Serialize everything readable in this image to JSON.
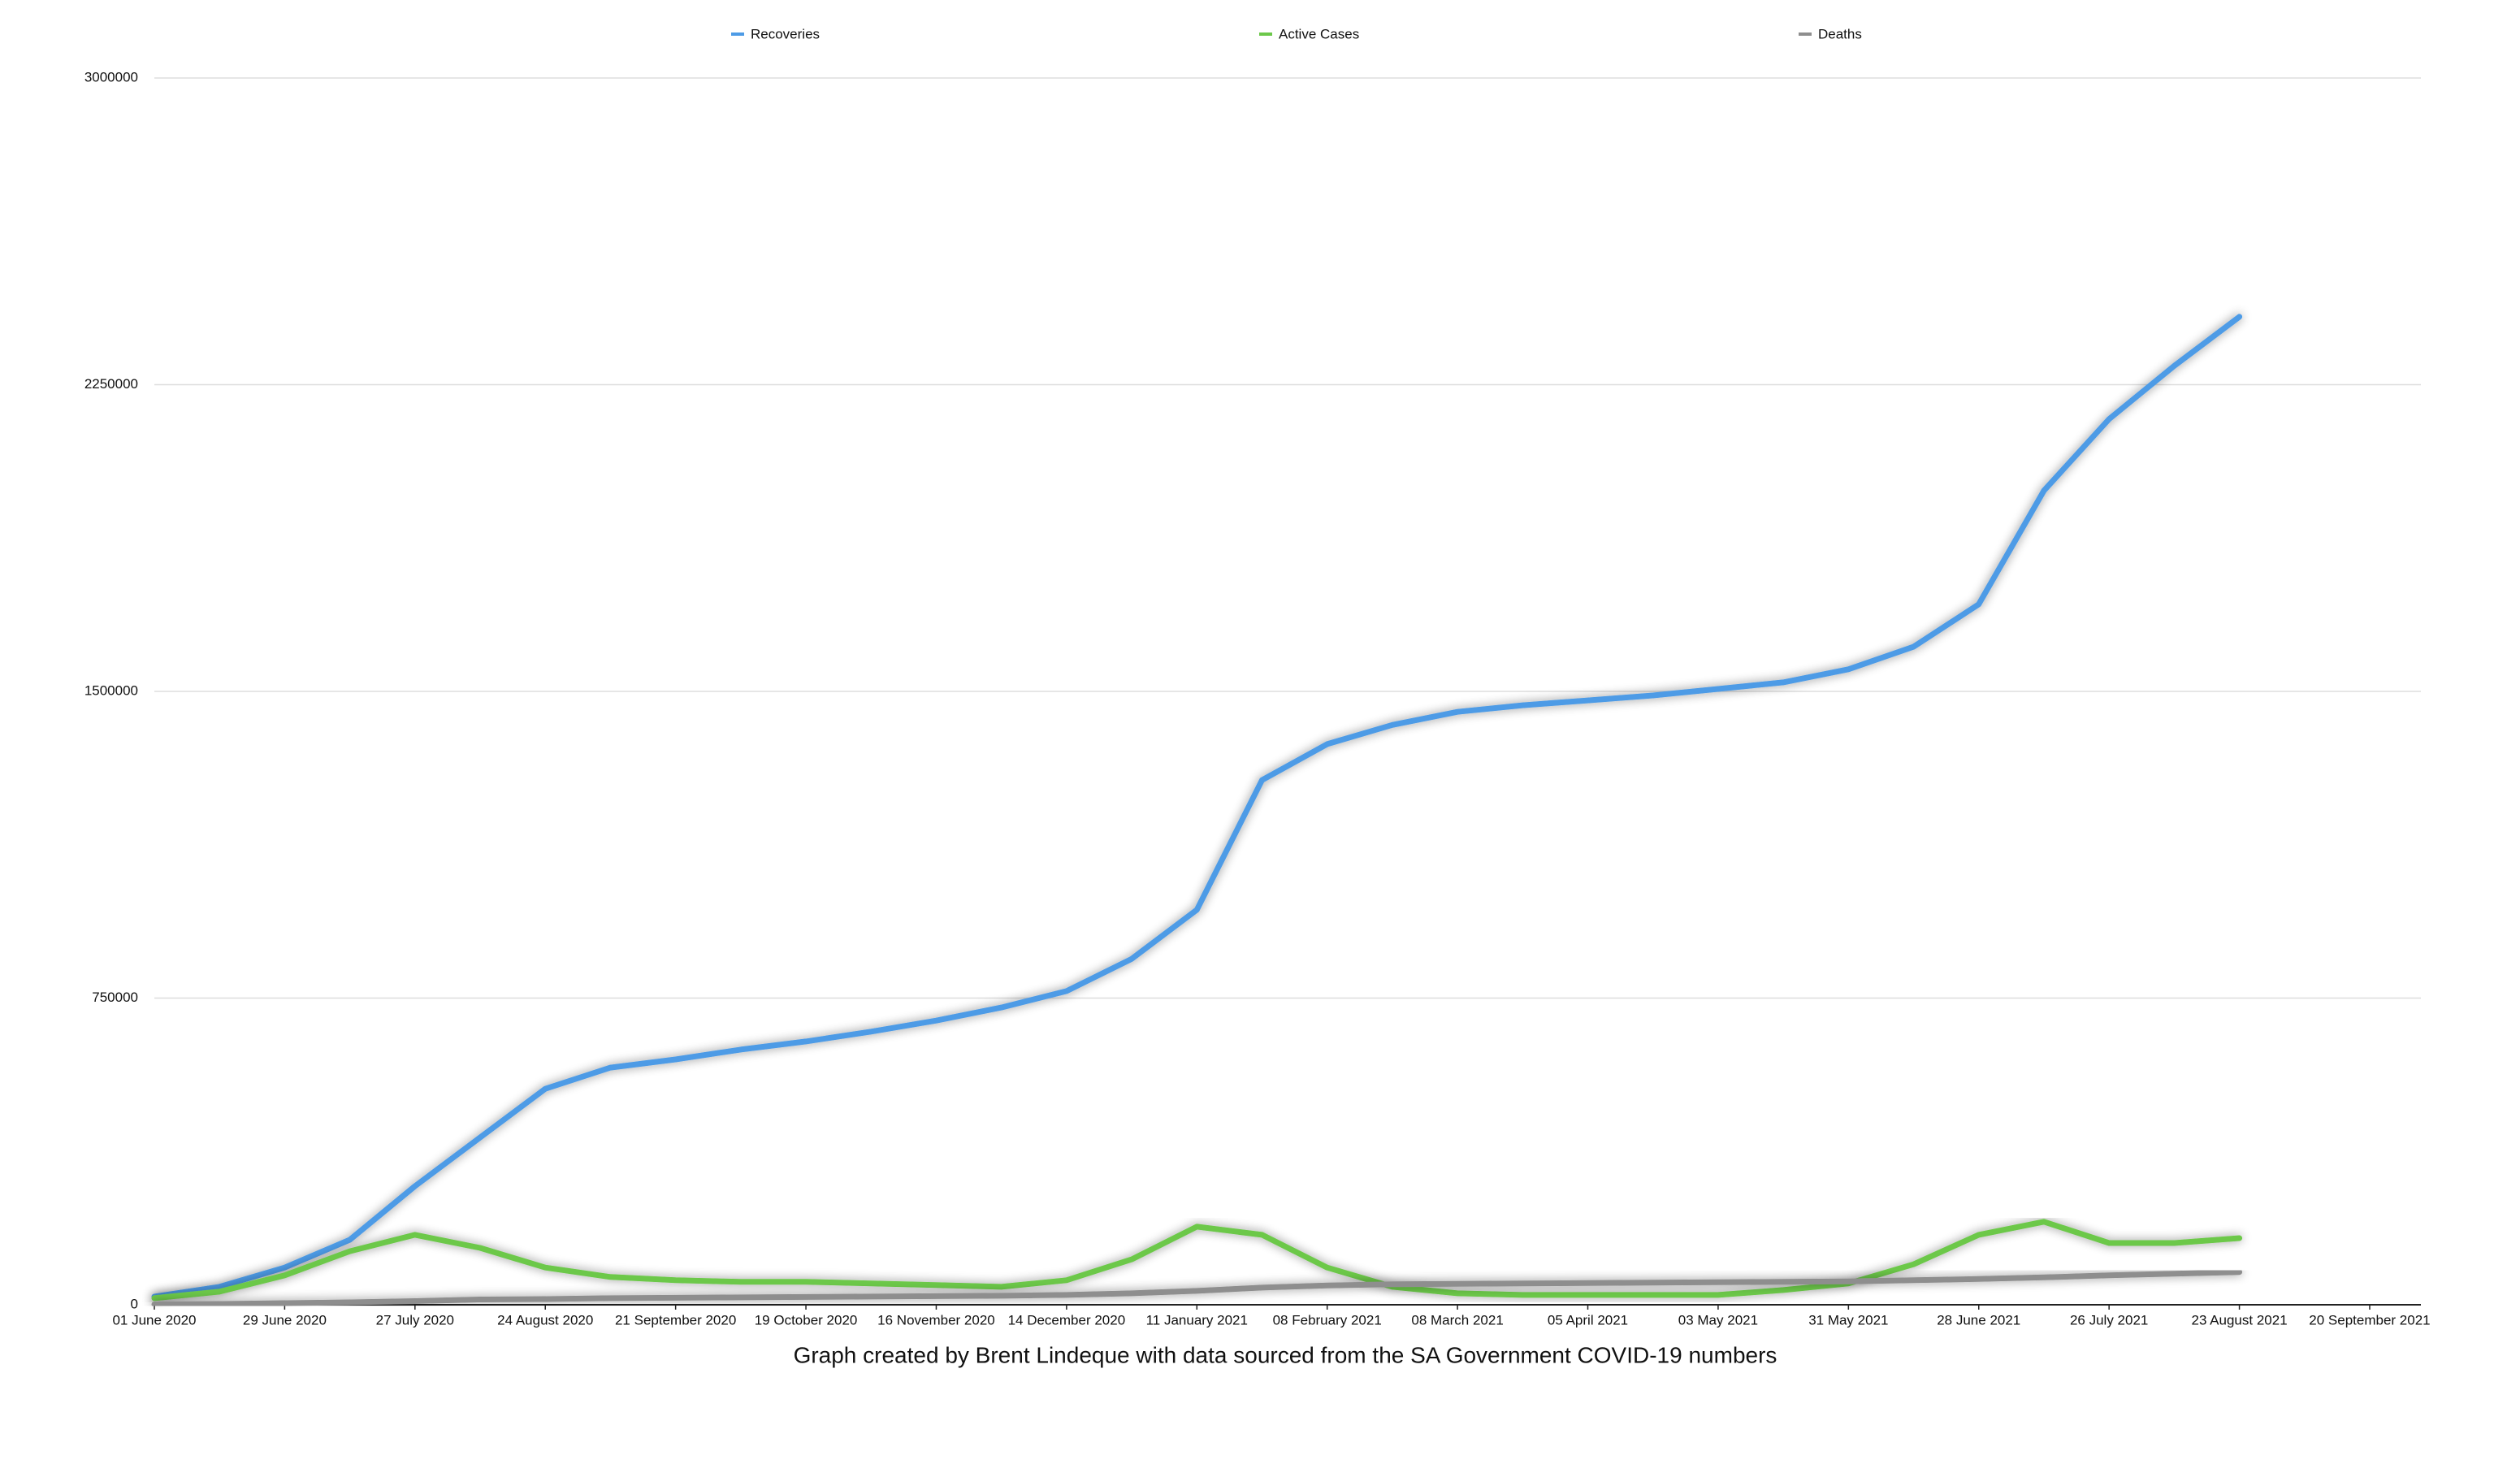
{
  "chart_data": {
    "type": "line",
    "caption": "Graph created by Brent Lindeque with data sourced from the SA Government COVID-19 numbers",
    "legend": "top",
    "grid": true,
    "x": [
      "2020-06-01",
      "2020-06-15",
      "2020-06-29",
      "2020-07-13",
      "2020-07-27",
      "2020-08-10",
      "2020-08-24",
      "2020-09-07",
      "2020-09-21",
      "2020-10-05",
      "2020-10-19",
      "2020-11-02",
      "2020-11-16",
      "2020-11-30",
      "2020-12-14",
      "2020-12-28",
      "2021-01-11",
      "2021-01-25",
      "2021-02-08",
      "2021-02-22",
      "2021-03-08",
      "2021-03-22",
      "2021-04-05",
      "2021-04-19",
      "2021-05-03",
      "2021-05-17",
      "2021-05-31",
      "2021-06-14",
      "2021-06-28",
      "2021-07-12",
      "2021-07-26",
      "2021-08-09",
      "2021-08-23"
    ],
    "xlim": [
      "2020-06-01",
      "2021-10-01"
    ],
    "xticks": [
      {
        "value": "2020-06-01",
        "label": "01 June 2020"
      },
      {
        "value": "2020-06-29",
        "label": "29 June 2020"
      },
      {
        "value": "2020-07-27",
        "label": "27 July 2020"
      },
      {
        "value": "2020-08-24",
        "label": "24 August 2020"
      },
      {
        "value": "2020-09-21",
        "label": "21 September 2020"
      },
      {
        "value": "2020-10-19",
        "label": "19 October 2020"
      },
      {
        "value": "2020-11-16",
        "label": "16 November 2020"
      },
      {
        "value": "2020-12-14",
        "label": "14 December 2020"
      },
      {
        "value": "2021-01-11",
        "label": "11 January 2021"
      },
      {
        "value": "2021-02-08",
        "label": "08 February 2021"
      },
      {
        "value": "2021-03-08",
        "label": "08 March 2021"
      },
      {
        "value": "2021-04-05",
        "label": "05 April 2021"
      },
      {
        "value": "2021-05-03",
        "label": "03 May 2021"
      },
      {
        "value": "2021-05-31",
        "label": "31 May 2021"
      },
      {
        "value": "2021-06-28",
        "label": "28 June 2021"
      },
      {
        "value": "2021-07-26",
        "label": "26 July 2021"
      },
      {
        "value": "2021-08-23",
        "label": "23 August 2021"
      },
      {
        "value": "2021-09-20",
        "label": "20 September 2021"
      }
    ],
    "ylim": [
      0,
      3000000
    ],
    "yticks": [
      0,
      750000,
      1500000,
      2250000,
      3000000
    ],
    "series": [
      {
        "name": "Recoveries",
        "color": "#4d9be6",
        "values": [
          20000,
          44000,
          91000,
          159000,
          290000,
          409000,
          528000,
          580000,
          600000,
          624000,
          644000,
          668000,
          695000,
          727000,
          767000,
          846000,
          966000,
          1283000,
          1371000,
          1418000,
          1450000,
          1466000,
          1478000,
          1490000,
          1506000,
          1522000,
          1554000,
          1609000,
          1713000,
          1991000,
          2166000,
          2296000,
          2416000
        ]
      },
      {
        "name": "Active Cases",
        "color": "#6cc84a",
        "values": [
          16000,
          32000,
          72000,
          131000,
          171000,
          139000,
          91000,
          68000,
          60000,
          56000,
          56000,
          52000,
          48000,
          44000,
          60000,
          111000,
          191000,
          171000,
          91000,
          44000,
          28000,
          24000,
          24000,
          24000,
          24000,
          36000,
          52000,
          99000,
          171000,
          203000,
          151000,
          151000,
          163000
        ]
      },
      {
        "name": "Deaths",
        "color": "#8e8e8e",
        "values": [
          1000,
          2000,
          4000,
          6000,
          9000,
          13000,
          14000,
          16000,
          17000,
          18000,
          19000,
          20000,
          21000,
          22000,
          24000,
          28000,
          34000,
          42000,
          47000,
          50000,
          51000,
          52000,
          53000,
          54000,
          55000,
          56000,
          57000,
          60000,
          63000,
          67000,
          72000,
          76000,
          80000
        ]
      }
    ]
  }
}
